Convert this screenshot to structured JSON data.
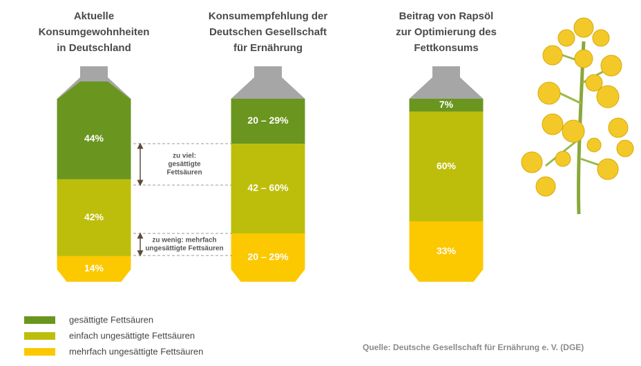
{
  "columns": [
    {
      "title": [
        "Aktuelle",
        "Konsumgewohnheiten",
        "in Deutschland"
      ],
      "segments": [
        {
          "value": 44,
          "label": "44%"
        },
        {
          "value": 42,
          "label": "42%"
        },
        {
          "value": 14,
          "label": "14%"
        }
      ]
    },
    {
      "title": [
        "Konsumempfehlung der",
        "Deutschen Gesellschaft",
        "für Ernährung"
      ],
      "segments": [
        {
          "label": "20 – 29%"
        },
        {
          "label": "42 – 60%"
        },
        {
          "label": "20 – 29%"
        }
      ]
    },
    {
      "title": [
        "Beitrag von Rapsöl",
        "zur Optimierung des",
        "Fettkonsums"
      ],
      "segments": [
        {
          "value": 7,
          "label": "7%"
        },
        {
          "value": 60,
          "label": "60%"
        },
        {
          "value": 33,
          "label": "33%"
        }
      ]
    }
  ],
  "annotations": [
    {
      "lines": [
        "zu viel:",
        "gesättigte",
        "Fettsäuren"
      ]
    },
    {
      "lines": [
        "zu wenig: mehrfach",
        "ungesättigte Fettsäuren"
      ]
    }
  ],
  "legend": [
    {
      "label": "gesättigte Fettsäuren",
      "color": "#6a961f"
    },
    {
      "label": "einfach ungesättigte Fettsäuren",
      "color": "#bdbe0b"
    },
    {
      "label": "mehrfach ungesättigte Fettsäuren",
      "color": "#fcc800"
    }
  ],
  "source": "Quelle: Deutsche Gesellschaft für Ernährung e. V. (DGE)"
}
